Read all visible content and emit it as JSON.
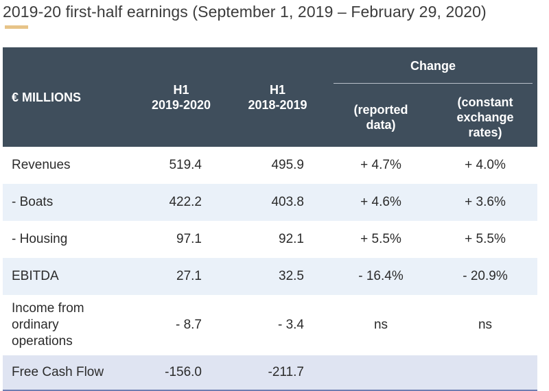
{
  "title": "2019-20 first-half earnings (September 1, 2019 – February 29, 2020)",
  "accent_color": "#e7c488",
  "header": {
    "label": "€ MILLIONS",
    "col1_line1": "H1",
    "col1_line2": "2019-2020",
    "col2_line1": "H1",
    "col2_line2": "2018-2019",
    "change": "Change",
    "reported_line1": "(reported",
    "reported_line2": "data)",
    "constant_line1": "(constant",
    "constant_line2": "exchange",
    "constant_line3": "rates)"
  },
  "rows": [
    {
      "label": "Revenues",
      "h1_2019_2020": "519.4",
      "h1_2018_2019": "495.9",
      "reported": "+ 4.7%",
      "constant": "+ 4.0%"
    },
    {
      "label": "- Boats",
      "h1_2019_2020": "422.2",
      "h1_2018_2019": "403.8",
      "reported": "+ 4.6%",
      "constant": "+ 3.6%"
    },
    {
      "label": "- Housing",
      "h1_2019_2020": "97.1",
      "h1_2018_2019": "92.1",
      "reported": "+ 5.5%",
      "constant": "+ 5.5%"
    },
    {
      "label": "EBITDA",
      "h1_2019_2020": "27.1",
      "h1_2018_2019": "32.5",
      "reported": "- 16.4%",
      "constant": "- 20.9%"
    },
    {
      "label_line1": "Income from",
      "label_line2": "ordinary",
      "label_line3": "operations",
      "h1_2019_2020": "- 8.7",
      "h1_2018_2019": "- 3.4",
      "reported": "ns",
      "constant": "ns"
    },
    {
      "label": "Free Cash Flow",
      "h1_2019_2020": "-156.0",
      "h1_2018_2019": "-211.7",
      "reported": "",
      "constant": ""
    }
  ]
}
